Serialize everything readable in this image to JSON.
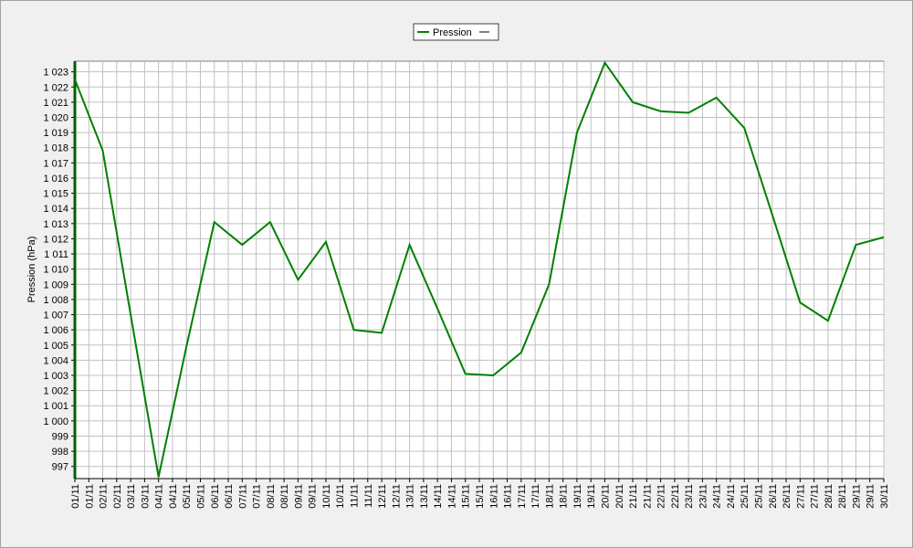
{
  "chart_data": {
    "type": "line",
    "y_label": "Pression (hPa)",
    "grid": true,
    "legend": "top",
    "x": [
      1,
      2,
      3,
      4,
      5,
      6,
      7,
      8,
      9,
      10,
      11,
      12,
      13,
      14,
      15,
      16,
      17,
      18,
      19,
      20,
      21,
      22,
      23,
      24,
      25,
      26,
      27,
      28,
      29,
      30
    ],
    "xlim": [
      1,
      30
    ],
    "xticks": [
      {
        "value": 1,
        "label": "01/11"
      },
      {
        "value": 1.5,
        "label": "01/11"
      },
      {
        "value": 2,
        "label": "02/11"
      },
      {
        "value": 2.5,
        "label": "02/11"
      },
      {
        "value": 3,
        "label": "03/11"
      },
      {
        "value": 3.5,
        "label": "03/11"
      },
      {
        "value": 4,
        "label": "04/11"
      },
      {
        "value": 4.5,
        "label": "04/11"
      },
      {
        "value": 5,
        "label": "05/11"
      },
      {
        "value": 5.5,
        "label": "05/11"
      },
      {
        "value": 6,
        "label": "06/11"
      },
      {
        "value": 6.5,
        "label": "06/11"
      },
      {
        "value": 7,
        "label": "07/11"
      },
      {
        "value": 7.5,
        "label": "07/11"
      },
      {
        "value": 8,
        "label": "08/11"
      },
      {
        "value": 8.5,
        "label": "08/11"
      },
      {
        "value": 9,
        "label": "09/11"
      },
      {
        "value": 9.5,
        "label": "09/11"
      },
      {
        "value": 10,
        "label": "10/11"
      },
      {
        "value": 10.5,
        "label": "10/11"
      },
      {
        "value": 11,
        "label": "11/11"
      },
      {
        "value": 11.5,
        "label": "11/11"
      },
      {
        "value": 12,
        "label": "12/11"
      },
      {
        "value": 12.5,
        "label": "12/11"
      },
      {
        "value": 13,
        "label": "13/11"
      },
      {
        "value": 13.5,
        "label": "13/11"
      },
      {
        "value": 14,
        "label": "14/11"
      },
      {
        "value": 14.5,
        "label": "14/11"
      },
      {
        "value": 15,
        "label": "15/11"
      },
      {
        "value": 15.5,
        "label": "15/11"
      },
      {
        "value": 16,
        "label": "16/11"
      },
      {
        "value": 16.5,
        "label": "16/11"
      },
      {
        "value": 17,
        "label": "17/11"
      },
      {
        "value": 17.5,
        "label": "17/11"
      },
      {
        "value": 18,
        "label": "18/11"
      },
      {
        "value": 18.5,
        "label": "18/11"
      },
      {
        "value": 19,
        "label": "19/11"
      },
      {
        "value": 19.5,
        "label": "19/11"
      },
      {
        "value": 20,
        "label": "20/11"
      },
      {
        "value": 20.5,
        "label": "20/11"
      },
      {
        "value": 21,
        "label": "21/11"
      },
      {
        "value": 21.5,
        "label": "21/11"
      },
      {
        "value": 22,
        "label": "22/11"
      },
      {
        "value": 22.5,
        "label": "22/11"
      },
      {
        "value": 23,
        "label": "23/11"
      },
      {
        "value": 23.5,
        "label": "23/11"
      },
      {
        "value": 24,
        "label": "24/11"
      },
      {
        "value": 24.5,
        "label": "24/11"
      },
      {
        "value": 25,
        "label": "25/11"
      },
      {
        "value": 25.5,
        "label": "25/11"
      },
      {
        "value": 26,
        "label": "26/11"
      },
      {
        "value": 26.5,
        "label": "26/11"
      },
      {
        "value": 27,
        "label": "27/11"
      },
      {
        "value": 27.5,
        "label": "27/11"
      },
      {
        "value": 28,
        "label": "28/11"
      },
      {
        "value": 28.5,
        "label": "28/11"
      },
      {
        "value": 29,
        "label": "29/11"
      },
      {
        "value": 29.5,
        "label": "29/11"
      },
      {
        "value": 30,
        "label": "30/11"
      }
    ],
    "ylim": [
      996.2,
      1023.7
    ],
    "yticks": [
      997,
      998,
      999,
      {
        "value": 1000,
        "label": "1 000"
      },
      {
        "value": 1001,
        "label": "1 001"
      },
      {
        "value": 1002,
        "label": "1 002"
      },
      {
        "value": 1003,
        "label": "1 003"
      },
      {
        "value": 1004,
        "label": "1 004"
      },
      {
        "value": 1005,
        "label": "1 005"
      },
      {
        "value": 1006,
        "label": "1 006"
      },
      {
        "value": 1007,
        "label": "1 007"
      },
      {
        "value": 1008,
        "label": "1 008"
      },
      {
        "value": 1009,
        "label": "1 009"
      },
      {
        "value": 1010,
        "label": "1 010"
      },
      {
        "value": 1011,
        "label": "1 011"
      },
      {
        "value": 1012,
        "label": "1 012"
      },
      {
        "value": 1013,
        "label": "1 013"
      },
      {
        "value": 1014,
        "label": "1 014"
      },
      {
        "value": 1015,
        "label": "1 015"
      },
      {
        "value": 1016,
        "label": "1 016"
      },
      {
        "value": 1017,
        "label": "1 017"
      },
      {
        "value": 1018,
        "label": "1 018"
      },
      {
        "value": 1019,
        "label": "1 019"
      },
      {
        "value": 1020,
        "label": "1 020"
      },
      {
        "value": 1021,
        "label": "1 021"
      },
      {
        "value": 1022,
        "label": "1 022"
      },
      {
        "value": 1023,
        "label": "1 023"
      }
    ],
    "series": [
      {
        "name": "Pression",
        "color": "#008000",
        "values": [
          1022.5,
          1017.8,
          1007.0,
          996.3,
          1004.9,
          1013.1,
          1011.6,
          1013.1,
          1009.3,
          1011.8,
          1006.0,
          1005.8,
          1011.6,
          1007.4,
          1003.1,
          1003.0,
          1004.5,
          1009.0,
          1019.0,
          1023.6,
          1021.0,
          1020.4,
          1020.3,
          1021.3,
          1019.3,
          1013.6,
          1007.8,
          1006.6,
          1011.6,
          1012.1
        ]
      }
    ]
  }
}
